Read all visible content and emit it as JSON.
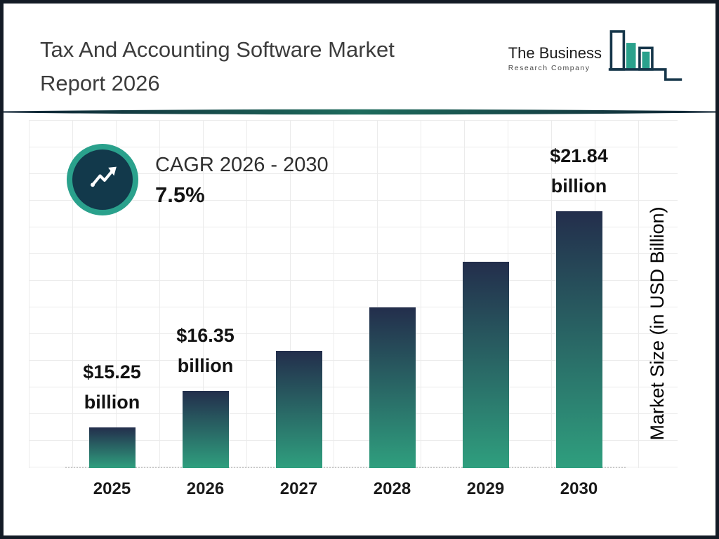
{
  "header": {
    "title_line1": "Tax And Accounting Software Market",
    "title_line2": "Report 2026",
    "logo": {
      "line1": "The Business",
      "line2": "Research Company"
    }
  },
  "cagr": {
    "label": "CAGR 2026 - 2030",
    "value": "7.5%"
  },
  "chart_data": {
    "type": "bar",
    "title": "Tax And Accounting Software Market Report 2026",
    "categories": [
      "2025",
      "2026",
      "2027",
      "2028",
      "2029",
      "2030"
    ],
    "values": [
      15.25,
      16.35,
      17.58,
      18.9,
      20.31,
      21.84
    ],
    "value_labels": [
      {
        "amount": "$15.25",
        "unit": "billion"
      },
      {
        "amount": "$16.35",
        "unit": "billion"
      },
      null,
      null,
      null,
      {
        "amount": "$21.84",
        "unit": "billion"
      }
    ],
    "xlabel": "",
    "ylabel": "Market Size (in USD Billion)",
    "ylim": [
      14,
      23
    ],
    "grid": true,
    "legend": false,
    "annotations": [
      "CAGR 2026 - 2030: 7.5%"
    ],
    "colors": {
      "bar_top": "#232e4c",
      "bar_bottom": "#2f9f7e",
      "cagr_ring": "#2aa18c",
      "cagr_disc": "#12394b",
      "logo_navy": "#16364a",
      "logo_teal": "#2aa18c"
    }
  }
}
